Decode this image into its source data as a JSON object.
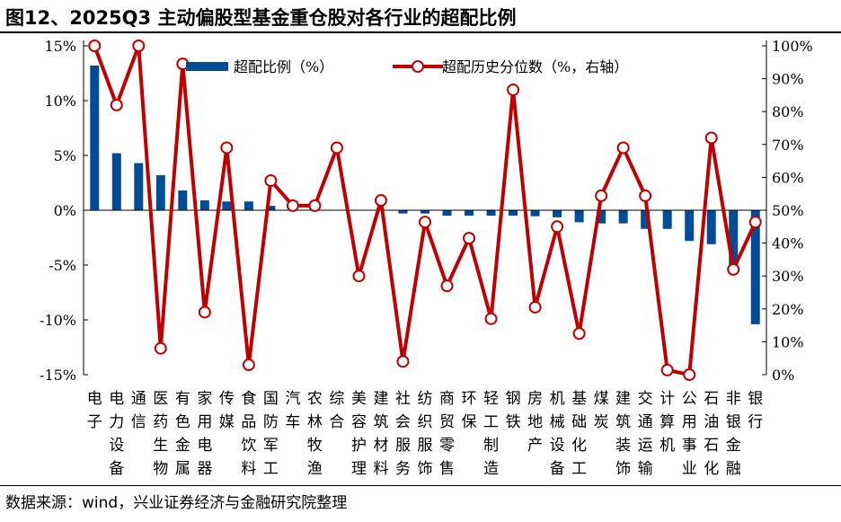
{
  "title": "图12、2025Q3 主动偏股型基金重仓股对各行业的超配比例",
  "source": "数据来源：wind，兴业证券经济与金融研究院整理",
  "colors": {
    "bar": "#004C97",
    "line": "#C00000"
  },
  "chart_data": {
    "type": "bar+line",
    "categories": [
      "电子",
      "电力设备",
      "通信",
      "医药生物",
      "有色金属",
      "家用电器",
      "传媒",
      "食品饮料",
      "国防军工",
      "汽车",
      "农林牧渔",
      "综合",
      "美容护理",
      "建筑材料",
      "社会服务",
      "纺织服饰",
      "商贸零售",
      "环保",
      "轻工制造",
      "钢铁",
      "房地产",
      "机械设备",
      "基础化工",
      "煤炭",
      "建筑装饰",
      "交通运输",
      "计算机",
      "公用事业",
      "石油石化",
      "非银金融",
      "银行"
    ],
    "series": [
      {
        "name": "超配比例（%）",
        "type": "bar",
        "axis": "left",
        "values": [
          13.2,
          5.2,
          4.3,
          3.2,
          1.8,
          0.9,
          0.8,
          0.8,
          0.4,
          0.0,
          0.0,
          0.0,
          0.0,
          0.0,
          -0.3,
          -0.3,
          -0.5,
          -0.5,
          -0.5,
          -0.5,
          -0.55,
          -0.65,
          -1.1,
          -1.2,
          -1.2,
          -1.7,
          -1.7,
          -2.8,
          -3.1,
          -5.0,
          -10.4
        ]
      },
      {
        "name": "超配历史分位数（%，右轴）",
        "type": "line",
        "axis": "right",
        "values": [
          100,
          82,
          100,
          8,
          94.5,
          19,
          69,
          3,
          59,
          51.4,
          51.4,
          69,
          30,
          53,
          4,
          46.4,
          27,
          41.5,
          17,
          86.6,
          20.5,
          45,
          12.5,
          54.4,
          69,
          54.4,
          1.4,
          0,
          72,
          32,
          46.4
        ]
      }
    ],
    "y_left": {
      "range": [
        -15,
        15
      ],
      "ticks": [
        "15%",
        "10%",
        "5%",
        "0%",
        "-5%",
        "-10%",
        "-15%"
      ]
    },
    "y_right": {
      "range": [
        0,
        100
      ],
      "ticks": [
        "100%",
        "90%",
        "80%",
        "70%",
        "60%",
        "50%",
        "40%",
        "30%",
        "20%",
        "10%",
        "0%"
      ]
    },
    "legend": "top",
    "grid": false
  }
}
